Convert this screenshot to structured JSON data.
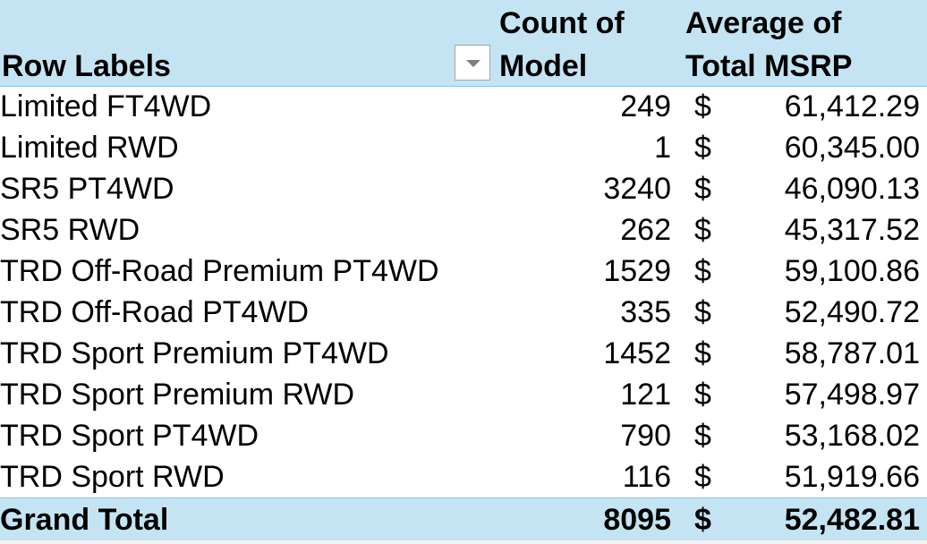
{
  "header": {
    "row_labels": "Row Labels",
    "count_line1": "Count of",
    "count_line2": "Model",
    "avg_line1": "Average of",
    "avg_line2": "Total MSRP"
  },
  "rows": [
    {
      "label": "Limited FT4WD",
      "count": "249",
      "currency": "$",
      "avg": "61,412.29"
    },
    {
      "label": "Limited RWD",
      "count": "1",
      "currency": "$",
      "avg": "60,345.00"
    },
    {
      "label": "SR5 PT4WD",
      "count": "3240",
      "currency": "$",
      "avg": "46,090.13"
    },
    {
      "label": "SR5 RWD",
      "count": "262",
      "currency": "$",
      "avg": "45,317.52"
    },
    {
      "label": "TRD Off-Road Premium PT4WD",
      "count": "1529",
      "currency": "$",
      "avg": "59,100.86"
    },
    {
      "label": "TRD Off-Road PT4WD",
      "count": "335",
      "currency": "$",
      "avg": "52,490.72"
    },
    {
      "label": "TRD Sport Premium PT4WD",
      "count": "1452",
      "currency": "$",
      "avg": "58,787.01"
    },
    {
      "label": "TRD Sport Premium RWD",
      "count": "121",
      "currency": "$",
      "avg": "57,498.97"
    },
    {
      "label": "TRD Sport PT4WD",
      "count": "790",
      "currency": "$",
      "avg": "53,168.02"
    },
    {
      "label": "TRD Sport RWD",
      "count": "116",
      "currency": "$",
      "avg": "51,919.66"
    }
  ],
  "total": {
    "label": "Grand Total",
    "count": "8095",
    "currency": "$",
    "avg": "52,482.81"
  },
  "colors": {
    "header_bg": "#c5e4f3",
    "header_border": "#8cc6e4"
  },
  "icons": {
    "filter": "dropdown-arrow-icon"
  }
}
